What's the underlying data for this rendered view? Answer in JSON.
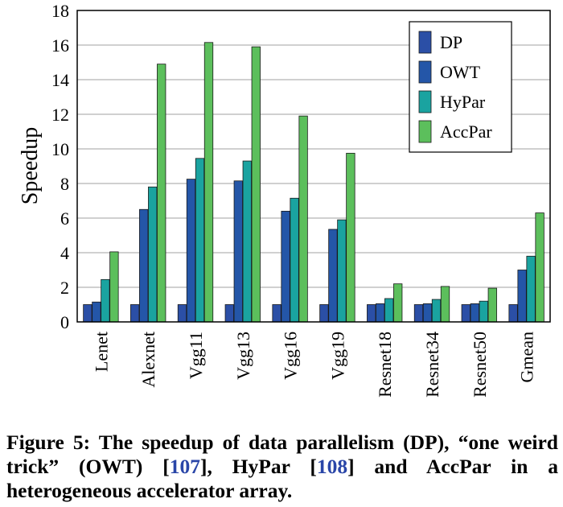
{
  "chart_data": {
    "type": "bar",
    "ylabel": "Speedup",
    "xlabel": "",
    "ylim": [
      0,
      18
    ],
    "yticks": [
      0,
      2,
      4,
      6,
      8,
      10,
      12,
      14,
      16,
      18
    ],
    "grid": true,
    "legend_position": "top-right",
    "categories": [
      "Lenet",
      "Alexnet",
      "Vgg11",
      "Vgg13",
      "Vgg16",
      "Vgg19",
      "Resnet18",
      "Resnet34",
      "Resnet50",
      "Gmean"
    ],
    "series": [
      {
        "name": "DP",
        "color": "#2b4fa6",
        "values": [
          1,
          1,
          1,
          1,
          1,
          1,
          1,
          1,
          1,
          1
        ]
      },
      {
        "name": "OWT",
        "color": "#2456a8",
        "values": [
          1.15,
          6.5,
          8.25,
          8.15,
          6.4,
          5.35,
          1.05,
          1.05,
          1.05,
          3.0
        ]
      },
      {
        "name": "HyPar",
        "color": "#1aa3a0",
        "values": [
          2.45,
          7.8,
          9.45,
          9.3,
          7.15,
          5.9,
          1.35,
          1.3,
          1.2,
          3.8
        ]
      },
      {
        "name": "AccPar",
        "color": "#5cbf5c",
        "values": [
          4.05,
          14.9,
          16.15,
          15.9,
          11.9,
          9.75,
          2.2,
          2.05,
          1.95,
          6.3
        ]
      }
    ]
  },
  "caption": {
    "part1": "Figure 5: The speedup of data parallelism (DP), “one weird trick” (OWT) [",
    "ref1": "107",
    "part2": "], HyPar [",
    "ref2": "108",
    "part3": "] and AccPar in a heterogeneous accelerator array."
  }
}
